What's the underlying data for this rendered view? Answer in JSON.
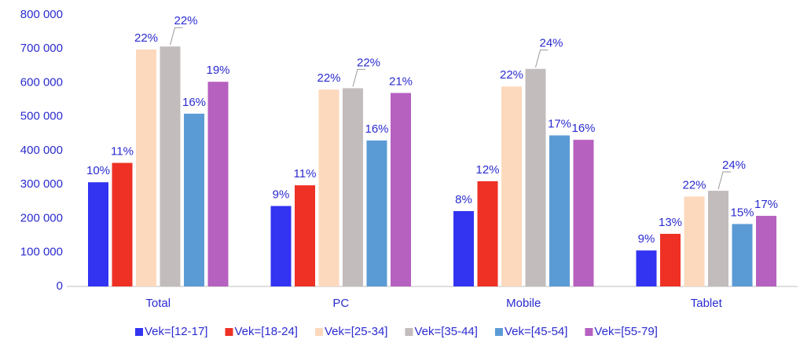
{
  "chart_data": {
    "type": "bar",
    "categories": [
      "Total",
      "PC",
      "Mobile",
      "Tablet"
    ],
    "series": [
      {
        "name": "Vek=[12-17]",
        "color": "#3333f2",
        "values": [
          307000,
          237000,
          222000,
          106000
        ],
        "share_labels": [
          "10%",
          "9%",
          "8%",
          "9%"
        ]
      },
      {
        "name": "Vek=[18-24]",
        "color": "#ee3124",
        "values": [
          364000,
          298000,
          310000,
          155000
        ],
        "share_labels": [
          "11%",
          "11%",
          "12%",
          "13%"
        ]
      },
      {
        "name": "Vek=[25-34]",
        "color": "#fcd9bd",
        "values": [
          698000,
          580000,
          589000,
          265000
        ],
        "share_labels": [
          "22%",
          "22%",
          "22%",
          "22%"
        ]
      },
      {
        "name": "Vek=[35-44]",
        "color": "#c3bcbc",
        "values": [
          707000,
          584000,
          641000,
          282000
        ],
        "share_labels": [
          "22%",
          "22%",
          "24%",
          "24%"
        ]
      },
      {
        "name": "Vek=[45-54]",
        "color": "#5b9bd5",
        "values": [
          509000,
          430000,
          445000,
          184000
        ],
        "share_labels": [
          "16%",
          "16%",
          "17%",
          "15%"
        ]
      },
      {
        "name": "Vek=[55-79]",
        "color": "#b660c0",
        "values": [
          603000,
          570000,
          432000,
          208000
        ],
        "share_labels": [
          "19%",
          "21%",
          "16%",
          "17%"
        ]
      }
    ],
    "ylim": [
      0,
      800000
    ],
    "yticks": [
      0,
      {
        "value": 100000,
        "label": "100 000"
      },
      {
        "value": 200000,
        "label": "200 000"
      },
      {
        "value": 300000,
        "label": "300 000"
      },
      {
        "value": 400000,
        "label": "400 000"
      },
      {
        "value": 500000,
        "label": "500 000"
      },
      {
        "value": 600000,
        "label": "600 000"
      },
      {
        "value": 700000,
        "label": "700 000"
      },
      {
        "value": 800000,
        "label": "800 000"
      }
    ],
    "grid": false,
    "legend": "bottom"
  }
}
